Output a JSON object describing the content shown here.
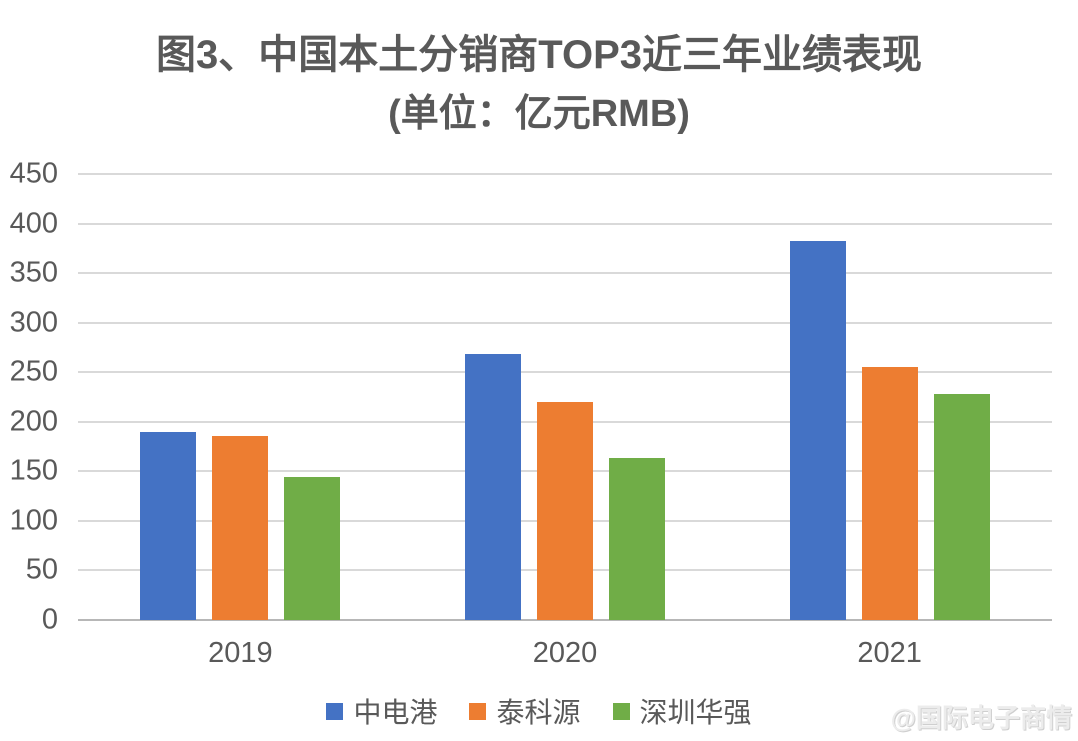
{
  "page": {
    "title_line1": "图3、中国本土分销商TOP3近三年业绩表现",
    "title_line2": "(单位：亿元RMB)",
    "watermark": "@国际电子商情"
  },
  "colors": {
    "series_blue": "#4472C4",
    "series_orange": "#ED7D31",
    "series_green": "#70AD47",
    "gridline": "#D9D9D9",
    "axis_line": "#B7B7B7",
    "text": "#595959",
    "watermark": "#ECECEC"
  },
  "chart_data": {
    "type": "bar",
    "title": "图3、中国本土分销商TOP3近三年业绩表现",
    "subtitle": "(单位：亿元RMB)",
    "unit": "亿元RMB",
    "categories": [
      "2019",
      "2020",
      "2021"
    ],
    "series": [
      {
        "name": "中电港",
        "color": "#4472C4",
        "values": [
          190,
          268,
          382
        ]
      },
      {
        "name": "泰科源",
        "color": "#ED7D31",
        "values": [
          186,
          220,
          255
        ]
      },
      {
        "name": "深圳华强",
        "color": "#70AD47",
        "values": [
          144,
          163,
          228
        ]
      }
    ],
    "xlabel": "",
    "ylabel": "",
    "ylim": [
      0,
      450
    ],
    "yticks": [
      0,
      50,
      100,
      150,
      200,
      250,
      300,
      350,
      400,
      450
    ],
    "grid": true,
    "legend_position": "bottom"
  }
}
